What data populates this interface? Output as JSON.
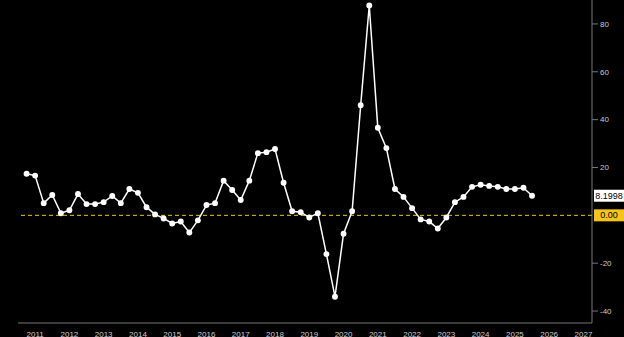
{
  "chart_data": {
    "type": "line",
    "categories": [
      null,
      null,
      2011,
      null,
      null,
      null,
      2012,
      null,
      null,
      null,
      2013,
      null,
      null,
      null,
      2014,
      null,
      null,
      null,
      2015,
      null,
      null,
      null,
      2016,
      null,
      null,
      null,
      2017,
      null,
      null,
      null,
      2018,
      null,
      null,
      null,
      2019,
      null,
      null,
      null,
      2020,
      null,
      null,
      null,
      2021,
      null,
      null,
      null,
      2022,
      null,
      null,
      null,
      2023,
      null,
      null,
      null,
      2024,
      null,
      null,
      null,
      2025,
      null,
      null,
      null,
      2026,
      null,
      null,
      null,
      2027,
      null
    ],
    "values": [
      null,
      17.4,
      16.6,
      5.1,
      8.5,
      0.9,
      2.1,
      8.9,
      4.7,
      4.7,
      5.5,
      8.1,
      5.1,
      11,
      9.4,
      3.4,
      0.4,
      -1.3,
      -3.4,
      -2.6,
      -7.2,
      -2.1,
      4.3,
      5.1,
      14.5,
      10.6,
      6.4,
      14.5,
      26,
      26.4,
      27.7,
      13.6,
      1.7,
      1.3,
      -0.9,
      0.9,
      -16.2,
      -34,
      -7.7,
      1.7,
      46,
      87.7,
      36.6,
      28.1,
      11,
      7.7,
      3,
      -1.7,
      -2.6,
      -5.5,
      -0.9,
      5.5,
      7.7,
      11.9,
      12.8,
      12.3,
      11.9,
      11,
      11,
      11.5,
      8.2,
      null,
      null,
      null,
      null,
      null,
      null,
      null
    ],
    "color": "#ffffff",
    "marker": "circle",
    "ylim": [
      -45,
      90
    ],
    "yticks": [
      -40,
      -20,
      20,
      40,
      60,
      80
    ],
    "reference_line": {
      "value": 0,
      "label": "0.00",
      "color": "#f5c518",
      "line_style": "dashed"
    },
    "last_value": 8.1998
  }
}
